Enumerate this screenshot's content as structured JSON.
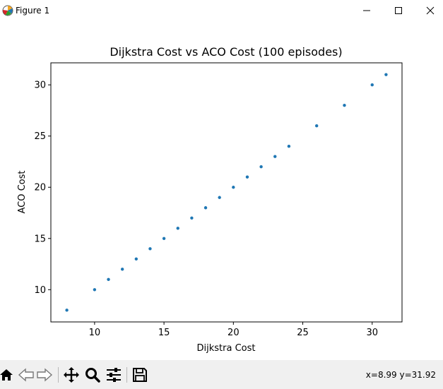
{
  "window": {
    "title": "Figure 1"
  },
  "toolbar": {
    "buttons": [
      "home-icon",
      "back-icon",
      "forward-icon",
      "pan-icon",
      "zoom-icon",
      "configure-icon",
      "save-icon"
    ],
    "coordinates": "x=8.99 y=31.92"
  },
  "chart_data": {
    "type": "scatter",
    "title": "Dijkstra Cost vs ACO Cost (100 episodes)",
    "xlabel": "Dijkstra Cost",
    "ylabel": "ACO Cost",
    "xlim": [
      6.85,
      32.15
    ],
    "ylim": [
      6.85,
      32.15
    ],
    "xticks": [
      10,
      15,
      20,
      25,
      30
    ],
    "yticks": [
      10,
      15,
      20,
      25,
      30
    ],
    "grid": false,
    "marker_color": "#1f77b4",
    "points": [
      [
        8,
        8
      ],
      [
        10,
        10
      ],
      [
        11,
        11
      ],
      [
        12,
        12
      ],
      [
        13,
        13
      ],
      [
        14,
        14
      ],
      [
        15,
        15
      ],
      [
        16,
        16
      ],
      [
        17,
        17
      ],
      [
        18,
        18
      ],
      [
        19,
        19
      ],
      [
        20,
        20
      ],
      [
        21,
        21
      ],
      [
        22,
        22
      ],
      [
        23,
        23
      ],
      [
        24,
        24
      ],
      [
        26,
        26
      ],
      [
        28,
        28
      ],
      [
        30,
        30
      ],
      [
        31,
        31
      ]
    ]
  }
}
